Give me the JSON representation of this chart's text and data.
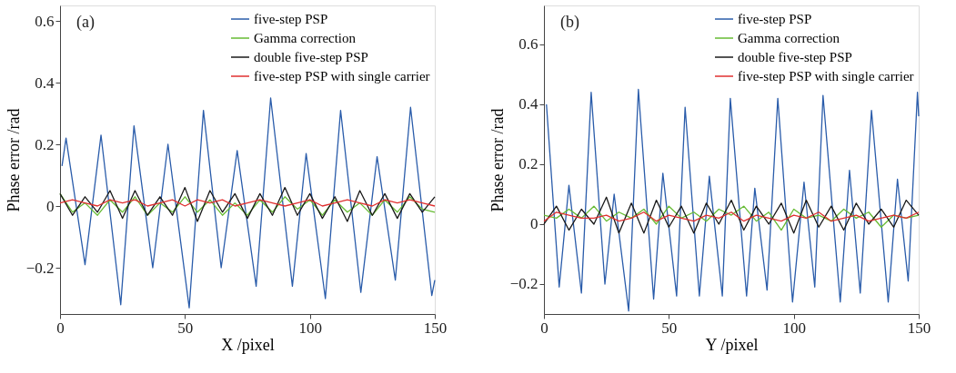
{
  "chart_data": [
    {
      "type": "line",
      "annotations": [
        "(a)"
      ],
      "xlabel": "X /pixel",
      "ylabel": "Phase error /rad",
      "xlim": [
        0,
        150
      ],
      "xticks": [
        0,
        50,
        100,
        150
      ],
      "ylim": [
        -0.35,
        0.65
      ],
      "yticks": [
        -0.2,
        0,
        0.2,
        0.4,
        0.6
      ],
      "grid": false,
      "legend": "top right",
      "line_style": "solid",
      "marker": "none",
      "series": [
        {
          "name": "five-step PSP",
          "color": "#2a5caa",
          "x": [
            0.8,
            2.4,
            10,
            16.4,
            24.3,
            29.6,
            37.1,
            43.2,
            51.7,
            57.4,
            64.5,
            70.9,
            78.5,
            84.3,
            93,
            98.5,
            106.2,
            112.3,
            120.4,
            126.9,
            134.2,
            140.3,
            148.8,
            150
          ],
          "values": [
            0.13,
            0.22,
            -0.19,
            0.23,
            -0.32,
            0.26,
            -0.2,
            0.2,
            -0.33,
            0.31,
            -0.2,
            0.18,
            -0.26,
            0.35,
            -0.26,
            0.17,
            -0.3,
            0.31,
            -0.28,
            0.16,
            -0.24,
            0.32,
            -0.29,
            -0.24
          ]
        },
        {
          "name": "Gamma correction",
          "color": "#66bb33",
          "x": [
            0,
            5,
            10,
            15,
            20,
            25,
            30,
            35,
            40,
            45,
            50,
            55,
            60,
            65,
            70,
            75,
            80,
            85,
            90,
            95,
            100,
            105,
            110,
            115,
            120,
            125,
            130,
            135,
            140,
            145,
            150
          ],
          "values": [
            0.04,
            -0.02,
            0.01,
            -0.03,
            0.02,
            -0.02,
            0.03,
            -0.03,
            0.01,
            -0.02,
            0.03,
            -0.02,
            0.02,
            -0.03,
            0.01,
            -0.03,
            0.02,
            -0.02,
            0.03,
            -0.01,
            0.02,
            -0.03,
            0.02,
            -0.02,
            0.01,
            -0.03,
            0.02,
            -0.02,
            0.03,
            -0.01,
            -0.02
          ]
        },
        {
          "name": "double five-step PSP",
          "color": "#1a1a1a",
          "x": [
            0,
            5,
            10,
            15,
            20,
            25,
            30,
            35,
            40,
            45,
            50,
            55,
            60,
            65,
            70,
            75,
            80,
            85,
            90,
            95,
            100,
            105,
            110,
            115,
            120,
            125,
            130,
            135,
            140,
            145,
            150
          ],
          "values": [
            0.04,
            -0.03,
            0.03,
            -0.02,
            0.05,
            -0.04,
            0.05,
            -0.03,
            0.03,
            -0.03,
            0.06,
            -0.05,
            0.05,
            -0.02,
            0.04,
            -0.04,
            0.04,
            -0.03,
            0.06,
            -0.03,
            0.04,
            -0.04,
            0.03,
            -0.05,
            0.05,
            -0.03,
            0.04,
            -0.04,
            0.04,
            -0.02,
            0.03
          ]
        },
        {
          "name": "five-step PSP with single carrier",
          "color": "#e03030",
          "x": [
            0,
            5,
            10,
            15,
            20,
            25,
            30,
            35,
            40,
            45,
            50,
            55,
            60,
            65,
            70,
            75,
            80,
            85,
            90,
            95,
            100,
            105,
            110,
            115,
            120,
            125,
            130,
            135,
            140,
            145,
            150
          ],
          "values": [
            0.01,
            0.02,
            0.01,
            0.0,
            0.02,
            0.01,
            0.02,
            0.0,
            0.01,
            0.02,
            0.0,
            0.02,
            0.01,
            0.02,
            0.0,
            0.01,
            0.02,
            0.01,
            0.0,
            0.01,
            0.02,
            0.0,
            0.01,
            0.02,
            0.01,
            0.0,
            0.02,
            0.01,
            0.02,
            0.01,
            0.0
          ]
        }
      ]
    },
    {
      "type": "line",
      "annotations": [
        "(b)"
      ],
      "xlabel": "Y /pixel",
      "ylabel": "Phase error /rad",
      "xlim": [
        0,
        150
      ],
      "xticks": [
        0,
        50,
        100,
        150
      ],
      "ylim": [
        -0.3,
        0.73
      ],
      "yticks": [
        -0.2,
        0,
        0.2,
        0.4,
        0.6
      ],
      "grid": false,
      "legend": "top right",
      "line_style": "solid",
      "marker": "none",
      "series": [
        {
          "name": "five-step PSP",
          "color": "#2a5caa",
          "x": [
            1,
            6.1,
            10,
            15,
            18.9,
            24.4,
            28.1,
            33.9,
            37.8,
            43.9,
            47.6,
            53.1,
            56.5,
            62.2,
            66.2,
            71.4,
            74.6,
            81.1,
            84.4,
            89.3,
            93.6,
            99.5,
            104.1,
            108.4,
            111.7,
            118.6,
            122.3,
            126.6,
            131.1,
            137.8,
            141.5,
            145.8,
            149.5,
            150
          ],
          "values": [
            0.4,
            -0.21,
            0.13,
            -0.23,
            0.44,
            -0.2,
            0.1,
            -0.29,
            0.45,
            -0.25,
            0.17,
            -0.24,
            0.39,
            -0.24,
            0.16,
            -0.24,
            0.42,
            -0.24,
            0.12,
            -0.22,
            0.42,
            -0.26,
            0.14,
            -0.21,
            0.43,
            -0.26,
            0.18,
            -0.23,
            0.38,
            -0.26,
            0.15,
            -0.19,
            0.44,
            0.36
          ]
        },
        {
          "name": "Gamma correction",
          "color": "#66bb33",
          "x": [
            0,
            5,
            10,
            15,
            20,
            25,
            30,
            35,
            40,
            45,
            50,
            55,
            60,
            65,
            70,
            75,
            80,
            85,
            90,
            95,
            100,
            105,
            110,
            115,
            120,
            125,
            130,
            135,
            140,
            145,
            150
          ],
          "values": [
            0.03,
            0.02,
            0.05,
            0.02,
            0.06,
            0.01,
            0.04,
            0.02,
            0.05,
            0.0,
            0.06,
            0.02,
            0.04,
            0.01,
            0.05,
            0.03,
            0.06,
            0.01,
            0.04,
            -0.02,
            0.05,
            0.02,
            0.03,
            0.01,
            0.05,
            0.02,
            0.04,
            -0.01,
            0.03,
            0.02,
            0.03
          ]
        },
        {
          "name": "double five-step PSP",
          "color": "#1a1a1a",
          "x": [
            0,
            5,
            10,
            15,
            20,
            25,
            30,
            35,
            40,
            45,
            50,
            55,
            60,
            65,
            70,
            75,
            80,
            85,
            90,
            95,
            100,
            105,
            110,
            115,
            120,
            125,
            130,
            135,
            140,
            145,
            150
          ],
          "values": [
            0.0,
            0.06,
            -0.02,
            0.05,
            0.0,
            0.09,
            -0.03,
            0.07,
            -0.03,
            0.08,
            -0.01,
            0.06,
            -0.03,
            0.07,
            0.0,
            0.08,
            -0.02,
            0.06,
            0.0,
            0.07,
            -0.03,
            0.08,
            -0.01,
            0.06,
            -0.02,
            0.07,
            0.0,
            0.05,
            -0.01,
            0.08,
            0.03
          ]
        },
        {
          "name": "five-step PSP with single carrier",
          "color": "#e03030",
          "x": [
            0,
            5,
            10,
            15,
            20,
            25,
            30,
            35,
            40,
            45,
            50,
            55,
            60,
            65,
            70,
            75,
            80,
            85,
            90,
            95,
            100,
            105,
            110,
            115,
            120,
            125,
            130,
            135,
            140,
            145,
            150
          ],
          "values": [
            0.01,
            0.04,
            0.03,
            0.02,
            0.02,
            0.03,
            0.01,
            0.02,
            0.04,
            0.01,
            0.03,
            0.02,
            0.01,
            0.03,
            0.02,
            0.04,
            0.01,
            0.03,
            0.02,
            0.01,
            0.03,
            0.02,
            0.04,
            0.01,
            0.02,
            0.03,
            0.01,
            0.02,
            0.03,
            0.02,
            0.04
          ]
        }
      ]
    }
  ]
}
